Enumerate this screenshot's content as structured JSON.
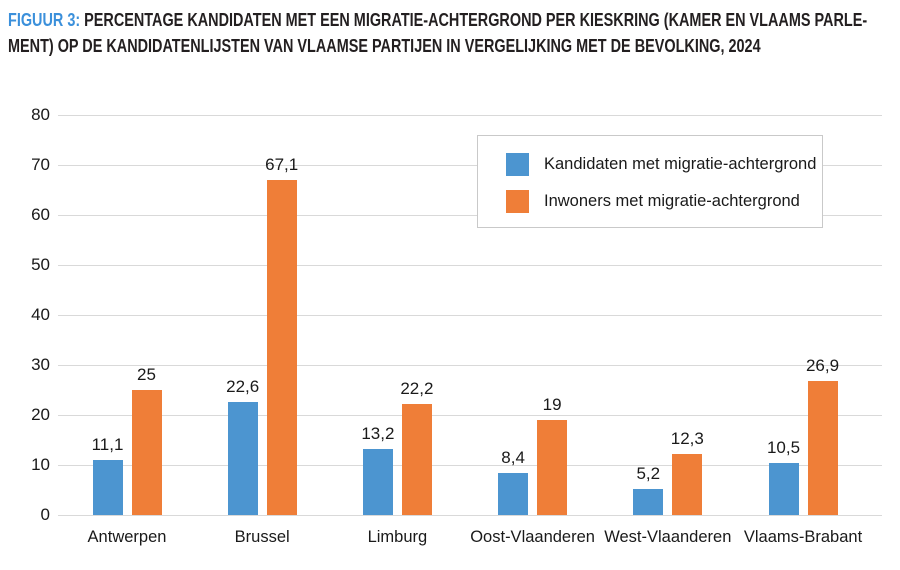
{
  "figure": {
    "title_prefix": "FIGUUR 3:",
    "title_line1": " PERCENTAGE KANDIDATEN MET EEN MIGRATIE-ACHTERGROND PER KIESKRING (KAMER EN VLAAMS PARLE-",
    "title_line2": "MENT) OP DE KANDIDATENLIJSTEN VAN VLAAMSE PARTIJEN IN VERGELIJKING MET DE BEVOLKING, 2024",
    "title_prefix_color": "#3B90DB",
    "title_text_color": "#231F20"
  },
  "chart_data": {
    "type": "bar",
    "title": "Percentage kandidaten met een migratie-achtergrond per kieskring (Kamer en Vlaams Parlement) op de kandidatenlijsten van Vlaamse partijen in vergelijking met de bevolking, 2024",
    "categories": [
      "Antwerpen",
      "Brussel",
      "Limburg",
      "Oost-Vlaanderen",
      "West-Vlaanderen",
      "Vlaams-Brabant"
    ],
    "series": [
      {
        "name": "Kandidaten met migratie-achtergrond",
        "color": "#4C95D0",
        "values": [
          11.1,
          22.6,
          13.2,
          8.4,
          5.2,
          10.5
        ],
        "labels": [
          "11,1",
          "22,6",
          "13,2",
          "8,4",
          "5,2",
          "10,5"
        ]
      },
      {
        "name": "Inwoners met migratie-achtergrond",
        "color": "#EF7E38",
        "values": [
          25,
          67.1,
          22.2,
          19,
          12.3,
          26.9
        ],
        "labels": [
          "25",
          "67,1",
          "22,2",
          "19",
          "12,3",
          "26,9"
        ]
      }
    ],
    "xlabel": "",
    "ylabel": "",
    "ylim": [
      0,
      80
    ],
    "yticks": [
      0,
      10,
      20,
      30,
      40,
      50,
      60,
      70,
      80
    ],
    "grid": true,
    "legend_position": "top-right",
    "gridline_color": "#D9D9D9",
    "text_color": "#1A1A1A",
    "legend_border_color": "#C9C9C9"
  }
}
